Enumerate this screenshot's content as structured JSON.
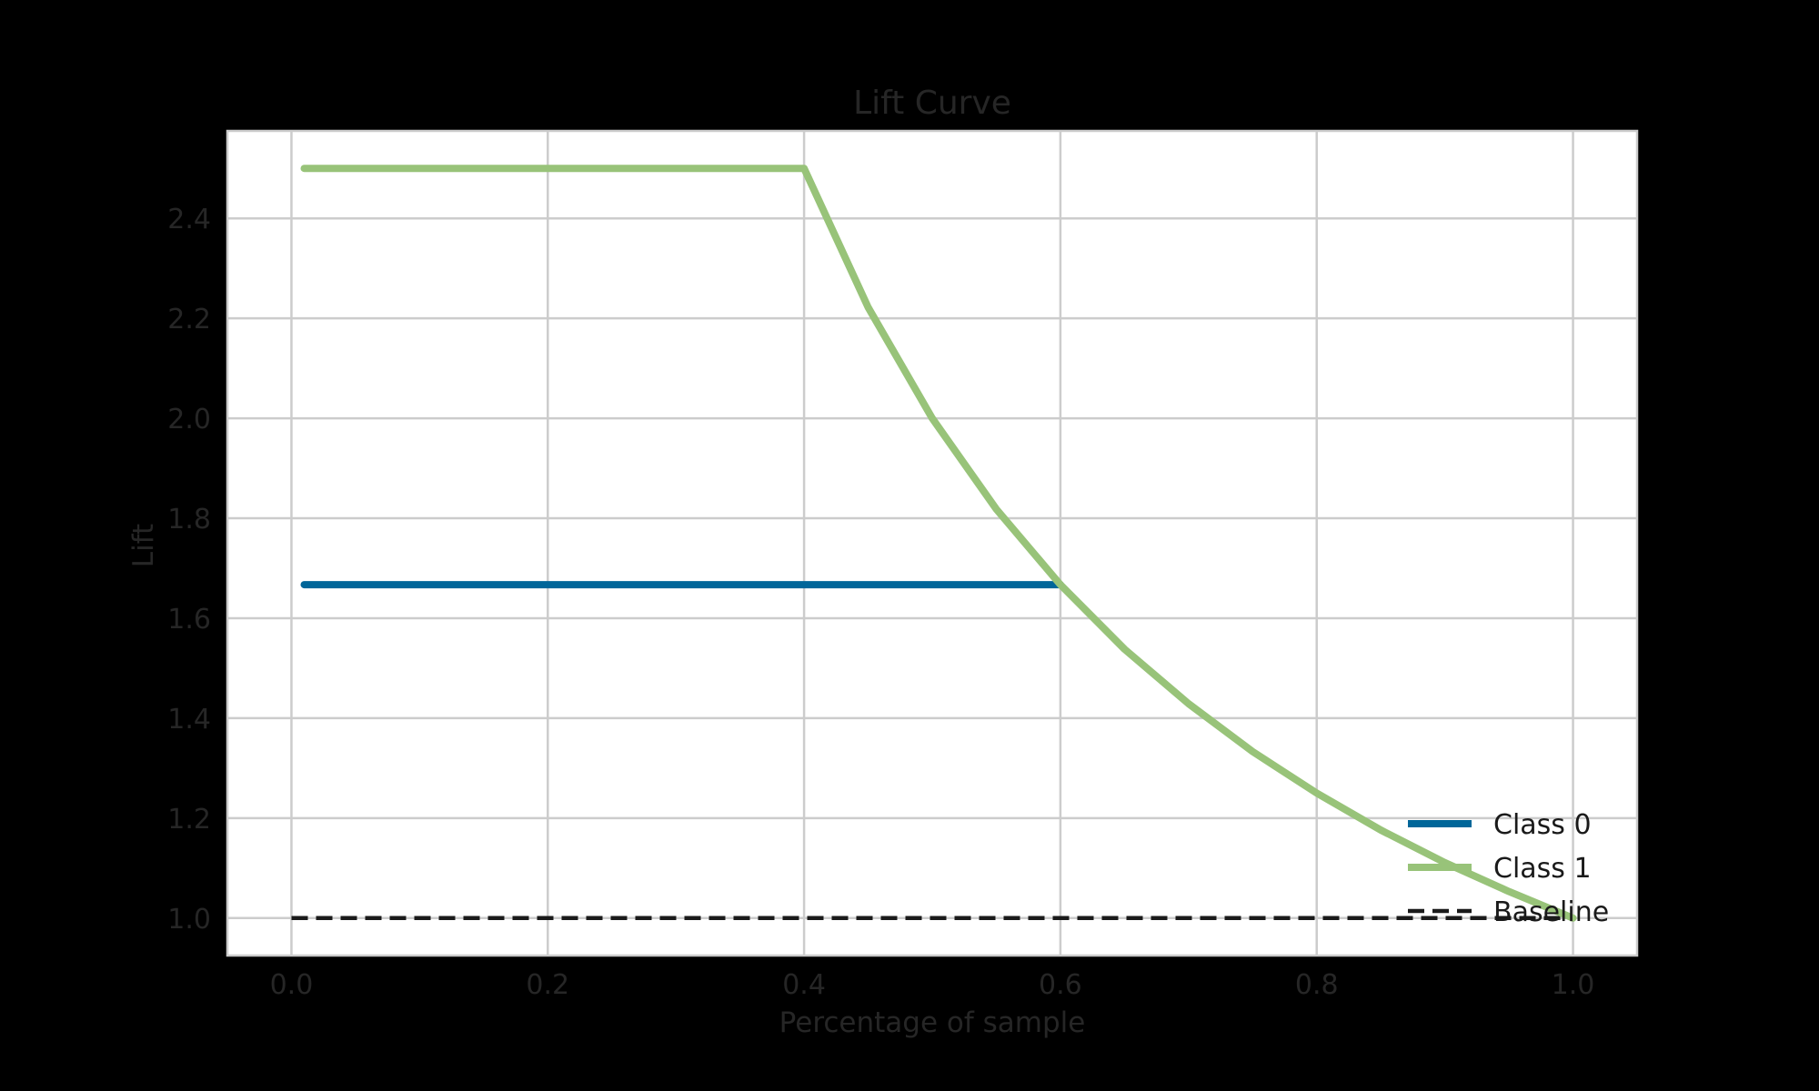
{
  "chart_data": {
    "type": "line",
    "title": "Lift Curve",
    "xlabel": "Percentage of sample",
    "ylabel": "Lift",
    "xlim": [
      -0.05,
      1.05
    ],
    "ylim": [
      0.925,
      2.575
    ],
    "xticks": [
      0.0,
      0.2,
      0.4,
      0.6,
      0.8,
      1.0
    ],
    "xtick_labels": [
      "0.0",
      "0.2",
      "0.4",
      "0.6",
      "0.8",
      "1.0"
    ],
    "yticks": [
      1.0,
      1.2,
      1.4,
      1.6,
      1.8,
      2.0,
      2.2,
      2.4
    ],
    "ytick_labels": [
      "1.0",
      "1.2",
      "1.4",
      "1.6",
      "1.8",
      "2.0",
      "2.2",
      "2.4"
    ],
    "grid": true,
    "legend_position": "lower-right",
    "background": "#000000",
    "plot_background": "#ffffff",
    "series": [
      {
        "name": "Class 0",
        "color": "#006699",
        "line_style": "solid",
        "x": [
          0.01,
          0.6
        ],
        "y": [
          1.667,
          1.667
        ]
      },
      {
        "name": "Class 1",
        "color": "#98c379",
        "line_style": "solid",
        "x": [
          0.01,
          0.4,
          0.45,
          0.5,
          0.55,
          0.6,
          0.65,
          0.7,
          0.75,
          0.8,
          0.85,
          0.9,
          0.95,
          1.0
        ],
        "y": [
          2.5,
          2.5,
          2.222,
          2.0,
          1.818,
          1.667,
          1.538,
          1.429,
          1.333,
          1.25,
          1.176,
          1.111,
          1.053,
          1.0
        ]
      },
      {
        "name": "Baseline",
        "color": "#1a1a1a",
        "line_style": "dashed",
        "x": [
          0.0,
          1.0
        ],
        "y": [
          1.0,
          1.0
        ]
      }
    ]
  }
}
